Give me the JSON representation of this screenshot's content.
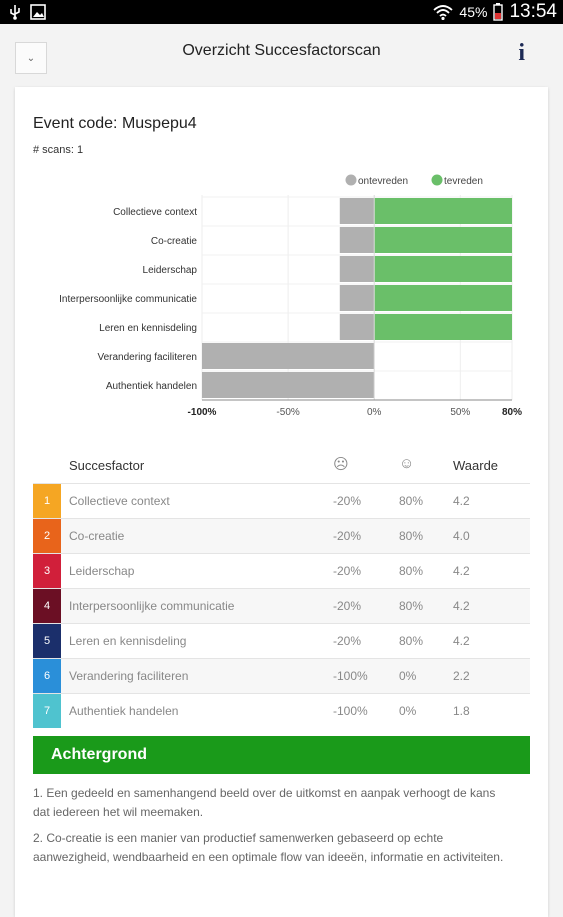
{
  "status": {
    "battery": "45%",
    "time": "13:54"
  },
  "header": {
    "title": "Overzicht Succesfactorscan",
    "info_label": "i"
  },
  "event": {
    "code_line": "Event code: Muspepu4",
    "scans_line": "# scans: 1"
  },
  "chart_data": {
    "type": "bar",
    "orientation": "horizontal",
    "stacked": true,
    "categories": [
      "Collectieve context",
      "Co-creatie",
      "Leiderschap",
      "Interpersoonlijke communicatie",
      "Leren en kennisdeling",
      "Verandering faciliteren",
      "Authentiek handelen"
    ],
    "series": [
      {
        "name": "ontevreden",
        "color": "#b0b0b0",
        "values": [
          -20,
          -20,
          -20,
          -20,
          -20,
          -100,
          -100
        ]
      },
      {
        "name": "tevreden",
        "color": "#6abf69",
        "values": [
          80,
          80,
          80,
          80,
          80,
          0,
          0
        ]
      }
    ],
    "xlim": [
      -100,
      80
    ],
    "xticks": [
      "-100%",
      "-50%",
      "0%",
      "50%",
      "80%"
    ],
    "legend": "top-right",
    "grid": true
  },
  "table": {
    "headers": {
      "name": "Succesfactor",
      "sad_icon": "sad-face-icon",
      "happy_icon": "happy-face-icon",
      "value": "Waarde"
    },
    "rows": [
      {
        "num": "1",
        "color": "#f5a623",
        "name": "Collectieve context",
        "neg": "-20%",
        "pos": "80%",
        "val": "4.2"
      },
      {
        "num": "2",
        "color": "#e8641b",
        "name": "Co-creatie",
        "neg": "-20%",
        "pos": "80%",
        "val": "4.0"
      },
      {
        "num": "3",
        "color": "#d11f3a",
        "name": "Leiderschap",
        "neg": "-20%",
        "pos": "80%",
        "val": "4.2"
      },
      {
        "num": "4",
        "color": "#6b0f24",
        "name": "Interpersoonlijke communicatie",
        "neg": "-20%",
        "pos": "80%",
        "val": "4.2"
      },
      {
        "num": "5",
        "color": "#1b2f6b",
        "name": "Leren en kennisdeling",
        "neg": "-20%",
        "pos": "80%",
        "val": "4.2"
      },
      {
        "num": "6",
        "color": "#2a8fd9",
        "name": "Verandering faciliteren",
        "neg": "-100%",
        "pos": "0%",
        "val": "2.2"
      },
      {
        "num": "7",
        "color": "#4fc3cf",
        "name": "Authentiek handelen",
        "neg": "-100%",
        "pos": "0%",
        "val": "1.8"
      }
    ]
  },
  "achtergrond": {
    "title": "Achtergrond",
    "paragraphs": [
      "1. Een gedeeld en samenhangend beeld over de uitkomst en aanpak verhoogt de kans dat iedereen het wil meemaken.",
      "2. Co-creatie is een manier van productief samenwerken gebaseerd op echte aanwezigheid, wendbaarheid en een optimale flow van ideeën, informatie en activiteiten."
    ]
  }
}
